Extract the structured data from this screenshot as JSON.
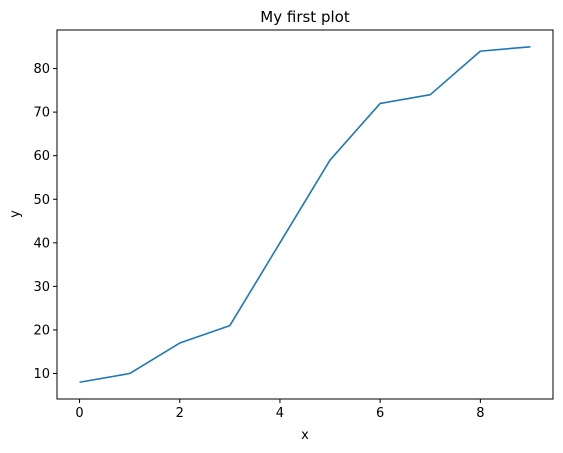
{
  "chart_data": {
    "type": "line",
    "title": "My first plot",
    "xlabel": "x",
    "ylabel": "y",
    "x": [
      0,
      1,
      2,
      3,
      4,
      5,
      6,
      7,
      8,
      9
    ],
    "series": [
      {
        "values": [
          8,
          10,
          17,
          21,
          40,
          59,
          72,
          74,
          84,
          85
        ],
        "color": "#1f77b4"
      }
    ],
    "xlim": [
      -0.45,
      9.45
    ],
    "ylim": [
      4.15,
      88.85
    ],
    "xticks": [
      0,
      2,
      4,
      6,
      8
    ],
    "yticks": [
      10,
      20,
      30,
      40,
      50,
      60,
      70,
      80
    ],
    "grid": false,
    "legend": "none"
  }
}
